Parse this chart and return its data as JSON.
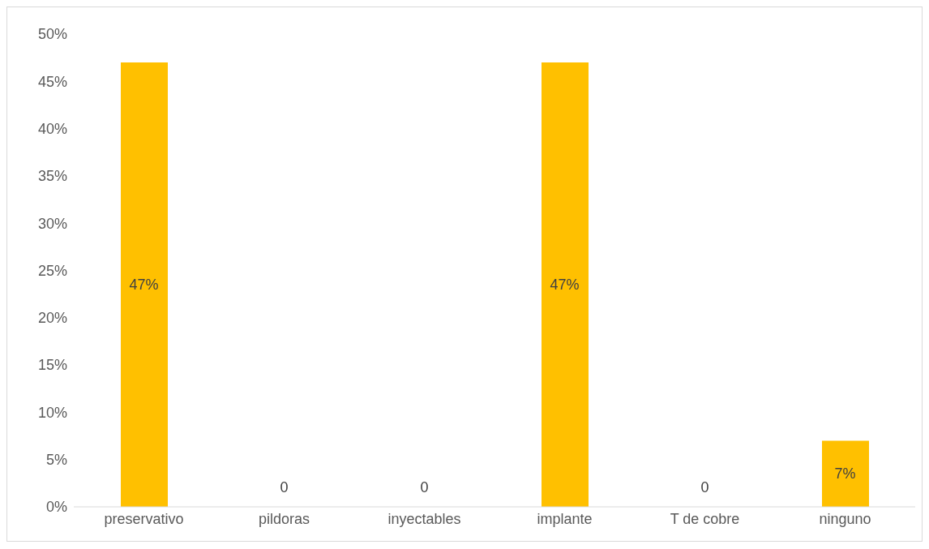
{
  "chart_data": {
    "type": "bar",
    "categories": [
      "preservativo",
      "pildoras",
      "inyectables",
      "implante",
      "T de cobre",
      "ninguno"
    ],
    "values": [
      47,
      0,
      0,
      47,
      0,
      7
    ],
    "value_labels": [
      "47%",
      "0",
      "0",
      "47%",
      "0",
      "7%"
    ],
    "color": "#ffc000",
    "ylim": [
      0,
      50
    ],
    "yticks": [
      {
        "value": 0,
        "label": "0%"
      },
      {
        "value": 5,
        "label": "5%"
      },
      {
        "value": 10,
        "label": "10%"
      },
      {
        "value": 15,
        "label": "15%"
      },
      {
        "value": 20,
        "label": "20%"
      },
      {
        "value": 25,
        "label": "25%"
      },
      {
        "value": 30,
        "label": "30%"
      },
      {
        "value": 35,
        "label": "35%"
      },
      {
        "value": 40,
        "label": "40%"
      },
      {
        "value": 45,
        "label": "45%"
      },
      {
        "value": 50,
        "label": "50%"
      }
    ],
    "grid": false,
    "legend": false
  }
}
